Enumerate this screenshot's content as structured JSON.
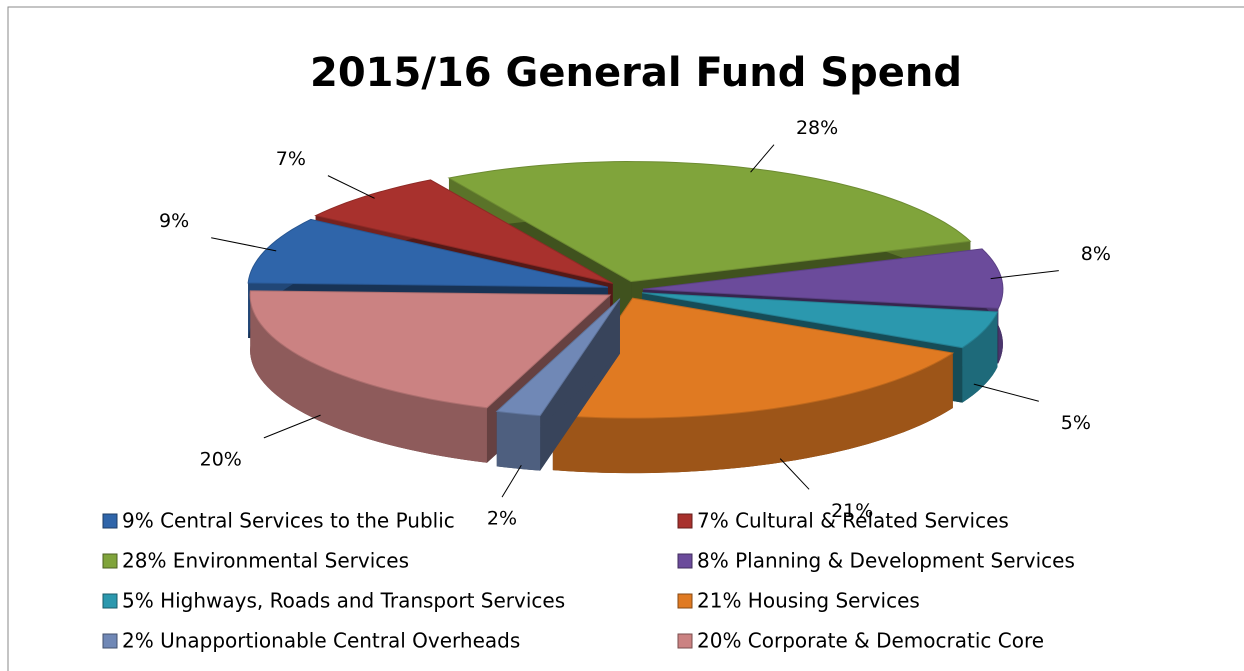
{
  "chart_data": {
    "type": "pie",
    "title": "2015/16 General Fund Spend",
    "categories": [
      "9% Central Services to the Public",
      "7% Cultural & Related Services",
      "28% Environmental Services",
      "8% Planning & Development Services",
      "5% Highways, Roads and Transport Services",
      "21% Housing Services",
      "2% Unapportionable Central Overheads",
      "20% Corporate & Democratic Core"
    ],
    "values": [
      9,
      7,
      28,
      8,
      5,
      21,
      2,
      20
    ],
    "value_labels": [
      "9%",
      "7%",
      "28%",
      "8%",
      "5%",
      "21%",
      "2%",
      "20%"
    ],
    "colors": [
      "#2f65aa",
      "#a8312d",
      "#80a43b",
      "#6b4b9b",
      "#2b98ae",
      "#e07a22",
      "#7088b6",
      "#cb8282"
    ],
    "legend": "bottom"
  }
}
